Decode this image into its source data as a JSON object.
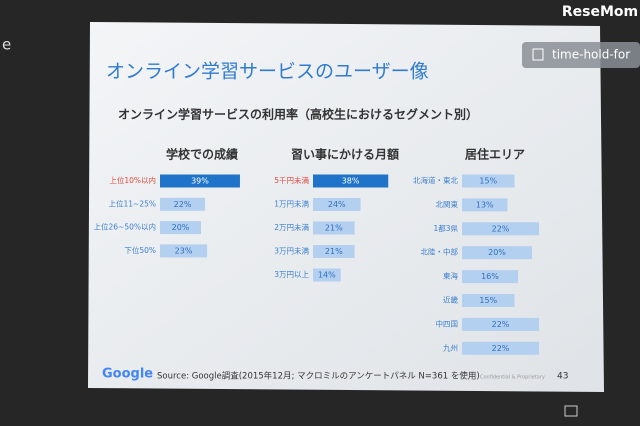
{
  "screen": {
    "watermark": "ReseMom",
    "tab_label": "time-hold-for",
    "edge_text": "e"
  },
  "slide": {
    "title": "オンライン学習サービスのユーザー像",
    "subtitle": "オンライン学習サービスの利用率（高校生におけるセグメント別）",
    "logo": "Google",
    "source": "Source: Google調査(2015年12月; マクロミルのアンケートパネル N=361 を使用)",
    "confidential": "Confidential & Proprietary",
    "page_number": "43"
  },
  "chart_data": [
    {
      "type": "hbar",
      "title": "学校での成績",
      "categories": [
        "上位10%以内",
        "上位11~25%",
        "上位26~50%以内",
        "下位50%"
      ],
      "values": [
        39,
        22,
        20,
        23
      ],
      "value_labels": [
        "39%",
        "22%",
        "20%",
        "23%"
      ],
      "colors": [
        "#1f74c9",
        "#b3d0f0",
        "#b3d0f0",
        "#b3d0f0"
      ],
      "label_colors": [
        "#e0483c",
        "#3b7fd0",
        "#3b7fd0",
        "#3b7fd0"
      ]
    },
    {
      "type": "hbar",
      "title": "習い事にかける月額",
      "categories": [
        "5千円未満",
        "1万円未満",
        "2万円未満",
        "3万円未満",
        "3万円以上"
      ],
      "values": [
        38,
        24,
        21,
        21,
        14
      ],
      "value_labels": [
        "38%",
        "24%",
        "21%",
        "21%",
        "14%"
      ],
      "colors": [
        "#1f74c9",
        "#b3d0f0",
        "#b3d0f0",
        "#b3d0f0",
        "#b3d0f0"
      ],
      "label_colors": [
        "#e0483c",
        "#3b7fd0",
        "#3b7fd0",
        "#3b7fd0",
        "#3b7fd0"
      ]
    },
    {
      "type": "hbar",
      "title": "居住エリア",
      "categories": [
        "北海道・東北",
        "北関東",
        "1都3県",
        "北陸・中部",
        "東海",
        "近畿",
        "中四国",
        "九州"
      ],
      "values": [
        15,
        13,
        22,
        20,
        16,
        15,
        22,
        22
      ],
      "value_labels": [
        "15%",
        "13%",
        "22%",
        "20%",
        "16%",
        "15%",
        "22%",
        "22%"
      ],
      "colors": [
        "#b3d0f0",
        "#b3d0f0",
        "#b3d0f0",
        "#b3d0f0",
        "#b3d0f0",
        "#b3d0f0",
        "#b3d0f0",
        "#b3d0f0"
      ],
      "label_colors": [
        "#3b7fd0",
        "#3b7fd0",
        "#3b7fd0",
        "#3b7fd0",
        "#3b7fd0",
        "#3b7fd0",
        "#3b7fd0",
        "#3b7fd0"
      ]
    }
  ]
}
